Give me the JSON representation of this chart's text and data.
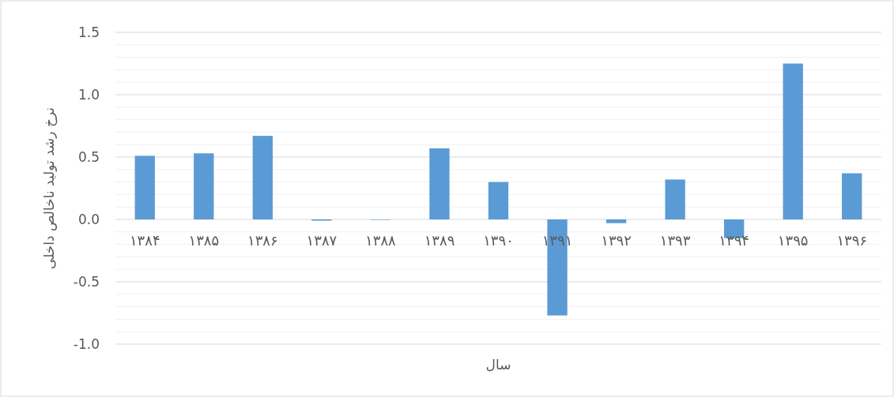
{
  "chart_data": {
    "type": "bar",
    "xlabel": "سال",
    "ylabel": "نرخ رشد تولید ناخالص داخلی",
    "categories": [
      "۱۳۸۴",
      "۱۳۸۵",
      "۱۳۸۶",
      "۱۳۸۷",
      "۱۳۸۸",
      "۱۳۸۹",
      "۱۳۹۰",
      "۱۳۹۱",
      "۱۳۹۲",
      "۱۳۹۳",
      "۱۳۹۴",
      "۱۳۹۵",
      "۱۳۹۶"
    ],
    "values": [
      0.51,
      0.53,
      0.67,
      -0.01,
      0,
      0.57,
      0.3,
      -0.77,
      -0.03,
      0.32,
      -0.15,
      1.25,
      0.37
    ],
    "color": "#5b9bd5",
    "ylim": [
      -1,
      1.5
    ],
    "yticks": [
      {
        "value": -1,
        "label": "-1.0"
      },
      {
        "value": -0.9,
        "label": null
      },
      {
        "value": -0.8,
        "label": null
      },
      {
        "value": -0.7,
        "label": null
      },
      {
        "value": -0.6,
        "label": null
      },
      {
        "value": -0.5,
        "label": "-0.5"
      },
      {
        "value": -0.4,
        "label": null
      },
      {
        "value": -0.3,
        "label": null
      },
      {
        "value": -0.2,
        "label": null
      },
      {
        "value": -0.1,
        "label": null
      },
      {
        "value": 0,
        "label": "0.0"
      },
      {
        "value": 0.1,
        "label": null
      },
      {
        "value": 0.2,
        "label": null
      },
      {
        "value": 0.3,
        "label": null
      },
      {
        "value": 0.4,
        "label": null
      },
      {
        "value": 0.5,
        "label": "0.5"
      },
      {
        "value": 0.6,
        "label": null
      },
      {
        "value": 0.7,
        "label": null
      },
      {
        "value": 0.8,
        "label": null
      },
      {
        "value": 0.9,
        "label": null
      },
      {
        "value": 1,
        "label": "1.0"
      },
      {
        "value": 1.1,
        "label": null
      },
      {
        "value": 1.2,
        "label": null
      },
      {
        "value": 1.3,
        "label": null
      },
      {
        "value": 1.4,
        "label": null
      },
      {
        "value": 1.5,
        "label": "1.5"
      }
    ],
    "grid": "y"
  }
}
